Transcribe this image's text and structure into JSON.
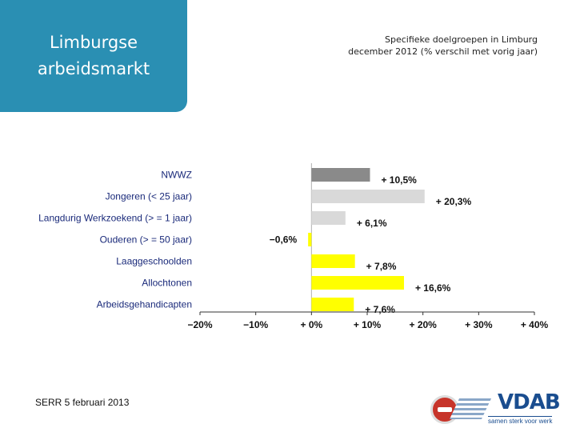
{
  "slide": {
    "title": "Limburgse arbeidsmarkt",
    "footer": "SERR 5 februari 2013"
  },
  "branding": {
    "logo_text": "VDAB",
    "tagline": "samen sterk voor werk"
  },
  "colors": {
    "title_box": "#2a8fb3",
    "bar_total": "#8a8a8a",
    "bar_gray": "#d9d9d9",
    "bar_yellow": "#ffff00"
  },
  "chart_data": {
    "type": "bar",
    "orientation": "horizontal",
    "title_lines": [
      "Specifieke doelgroepen in Limburg",
      "december 2012 (% verschil met vorig jaar)"
    ],
    "categories": [
      "NWWZ",
      "Jongeren (< 25 jaar)",
      "Langdurig Werkzoekend (> = 1 jaar)",
      "Ouderen (> = 50 jaar)",
      "Laaggeschoolden",
      "Allochtonen",
      "Arbeidsgehandicapten"
    ],
    "values": [
      10.5,
      20.3,
      6.1,
      -0.6,
      7.8,
      16.6,
      7.6
    ],
    "value_labels": [
      "+ 10,5%",
      "+ 20,3%",
      "+ 6,1%",
      "−0,6%",
      "+ 7,8%",
      "+ 16,6%",
      "+ 7,6%"
    ],
    "bar_colors": [
      "#8a8a8a",
      "#d9d9d9",
      "#d9d9d9",
      "#ffff00",
      "#ffff00",
      "#ffff00",
      "#ffff00"
    ],
    "xlim": [
      -20,
      40
    ],
    "xticks": [
      -20,
      -10,
      0,
      10,
      20,
      30,
      40
    ],
    "xtick_labels": [
      "−20%",
      "−10%",
      "+ 0%",
      "+ 10%",
      "+ 20%",
      "+ 30%",
      "+ 40%"
    ],
    "grid": false
  }
}
